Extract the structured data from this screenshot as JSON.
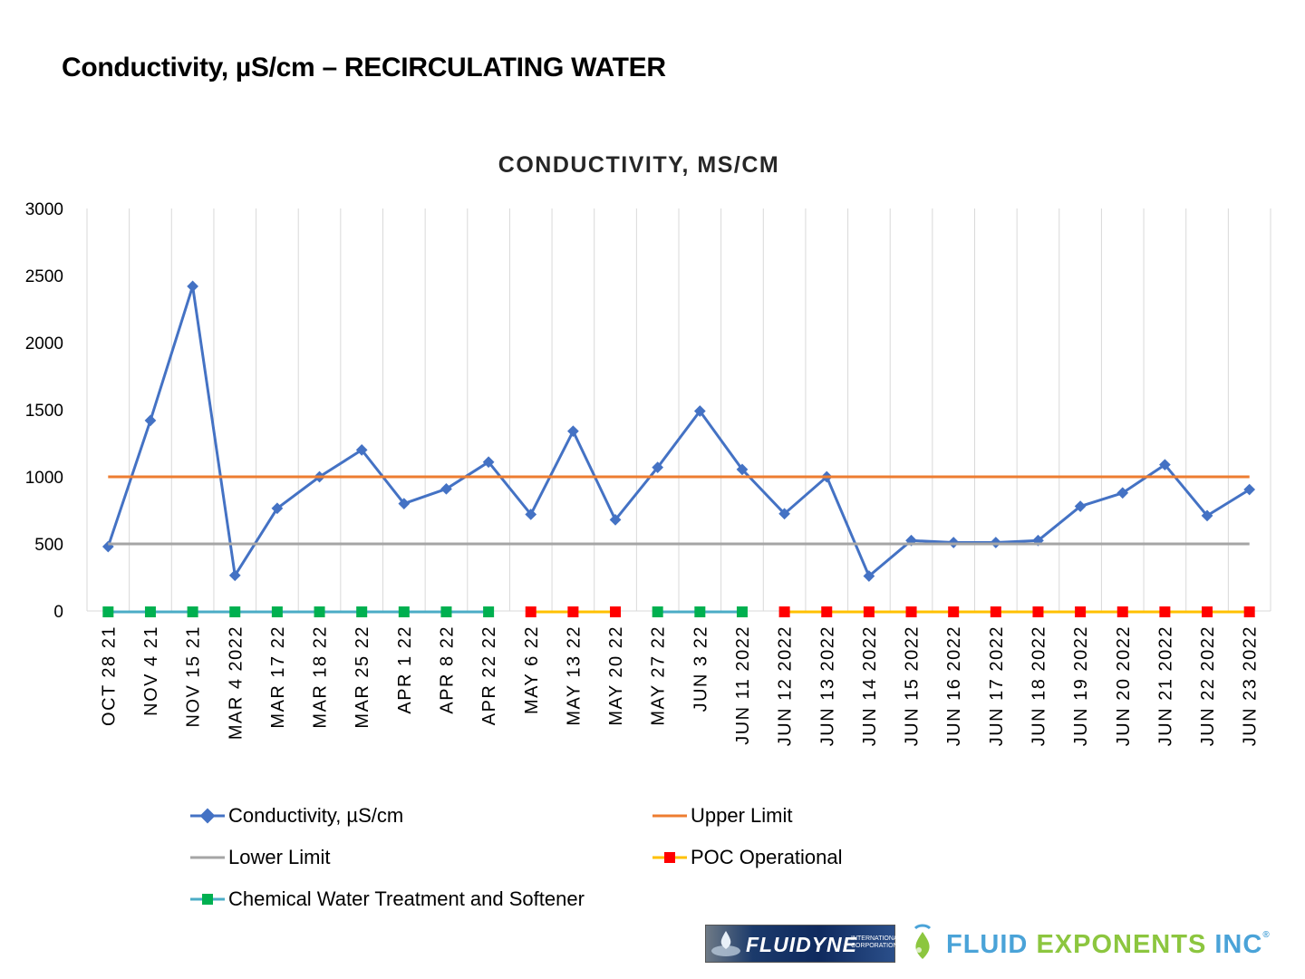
{
  "page": {
    "title": "Conductivity, µS/cm – RECIRCULATING WATER"
  },
  "colors": {
    "conductivity": "#4472C4",
    "upper_limit": "#ED7D31",
    "lower_limit": "#A5A5A5",
    "poc_line": "#FFC000",
    "poc_marker": "#FF0000",
    "chem_line": "#4BACC6",
    "chem_marker": "#00B050",
    "grid": "#D9D9D9"
  },
  "logos": {
    "fluidyne_name": "FLUIDYNE",
    "fluidyne_sub": "INTERNATIONAL CORPORATION",
    "fluid_exponents_blue": "FLUID ",
    "fluid_exponents_green": "EXPONENTS",
    "fluid_exponents_suffix": " INC",
    "trademark": "®"
  },
  "chart_data": {
    "type": "line",
    "title": "CONDUCTIVITY,  MS/CM",
    "ylim": [
      0,
      3000
    ],
    "yticks": [
      "0",
      "500",
      "1000",
      "1500",
      "2000",
      "2500",
      "3000"
    ],
    "categories": [
      "OCT  28  21",
      "NOV  4  21",
      "NOV  15  21",
      "MAR  4  2022",
      "MAR  17  22",
      "MAR  18  22",
      "MAR  25  22",
      "APR  1  22",
      "APR  8  22",
      "APR  22  22",
      "MAY  6  22",
      "MAY  13  22",
      "MAY  20  22",
      "MAY  27  22",
      "JUN  3  22",
      "JUN  11  2022",
      "JUN  12  2022",
      "JUN  13  2022",
      "JUN  14  2022",
      "JUN  15  2022",
      "JUN  16  2022",
      "JUN  17  2022",
      "JUN  18  2022",
      "JUN  19  2022",
      "JUN  20  2022",
      "JUN  21  2022",
      "JUN  22  2022",
      "JUN  23  2022"
    ],
    "series": [
      {
        "name": "Conductivity, µS/cm",
        "values": [
          480,
          1420,
          2420,
          265,
          765,
          1000,
          1200,
          800,
          910,
          1110,
          720,
          1340,
          680,
          1070,
          1490,
          1055,
          725,
          1000,
          260,
          525,
          510,
          510,
          525,
          780,
          880,
          1090,
          710,
          905
        ]
      },
      {
        "name": "Upper Limit",
        "values": [
          1000,
          1000,
          1000,
          1000,
          1000,
          1000,
          1000,
          1000,
          1000,
          1000,
          1000,
          1000,
          1000,
          1000,
          1000,
          1000,
          1000,
          1000,
          1000,
          1000,
          1000,
          1000,
          1000,
          1000,
          1000,
          1000,
          1000,
          1000
        ]
      },
      {
        "name": "Lower Limit",
        "values": [
          500,
          500,
          500,
          500,
          500,
          500,
          500,
          500,
          500,
          500,
          500,
          500,
          500,
          500,
          500,
          500,
          500,
          500,
          500,
          500,
          500,
          500,
          500,
          500,
          500,
          500,
          500,
          500
        ]
      },
      {
        "name": "POC Operational",
        "values": [
          null,
          null,
          null,
          null,
          null,
          null,
          null,
          null,
          null,
          null,
          0,
          0,
          0,
          null,
          null,
          null,
          0,
          0,
          0,
          0,
          0,
          0,
          0,
          0,
          0,
          0,
          0,
          0
        ]
      },
      {
        "name": "Chemical Water Treatment and Softener",
        "values": [
          0,
          0,
          0,
          0,
          0,
          0,
          0,
          0,
          0,
          0,
          null,
          null,
          null,
          0,
          0,
          0,
          null,
          null,
          null,
          null,
          null,
          null,
          null,
          null,
          null,
          null,
          null,
          null
        ]
      }
    ],
    "legend": [
      {
        "name": "Conductivity, µS/cm"
      },
      {
        "name": "Upper Limit"
      },
      {
        "name": "Lower Limit"
      },
      {
        "name": "POC Operational"
      },
      {
        "name": "Chemical Water Treatment and Softener"
      }
    ],
    "legend_position": "bottom",
    "grid": "vertical"
  }
}
